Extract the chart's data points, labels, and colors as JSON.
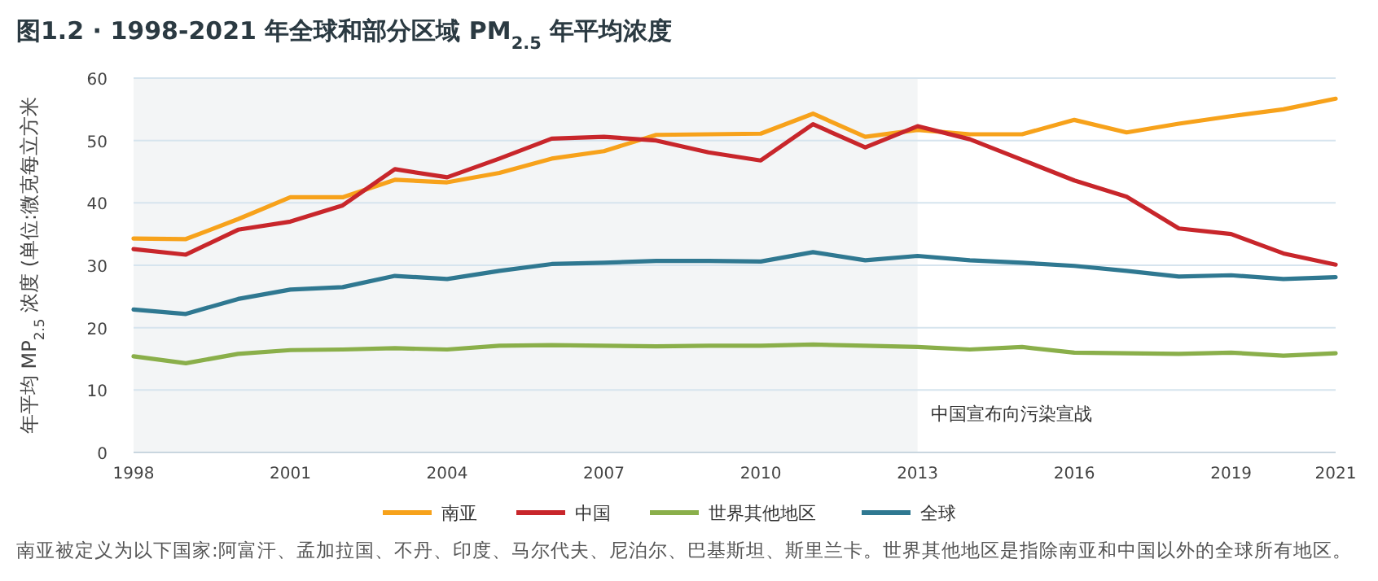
{
  "chart_data": {
    "type": "line",
    "title": "图1.2 · 1998-2021 年全球和部分区域 PM$_{2.5}$ 年平均浓度",
    "ylabel": "年平均 MP$_{2.5}$ 浓度 (单位:微克每立方米",
    "x": [
      1998,
      1999,
      2000,
      2001,
      2002,
      2003,
      2004,
      2005,
      2006,
      2007,
      2008,
      2009,
      2010,
      2011,
      2012,
      2013,
      2014,
      2015,
      2016,
      2017,
      2018,
      2019,
      2020,
      2021
    ],
    "series": [
      {
        "name": "南亚",
        "color": "#f7a21b",
        "values": [
          34.3,
          34.2,
          37.4,
          40.9,
          40.9,
          43.7,
          43.3,
          44.8,
          47.1,
          48.3,
          50.9,
          51.0,
          51.1,
          54.3,
          50.6,
          51.7,
          51.0,
          51.0,
          53.3,
          51.3,
          52.7,
          53.9,
          55.0,
          56.7
        ]
      },
      {
        "name": "中国",
        "color": "#c8262b",
        "values": [
          32.6,
          31.7,
          35.7,
          37.0,
          39.6,
          45.4,
          44.1,
          47.1,
          50.3,
          50.6,
          50.0,
          48.1,
          46.8,
          52.6,
          48.9,
          52.3,
          50.2,
          46.9,
          43.6,
          41.0,
          35.9,
          35.0,
          31.9,
          30.1
        ]
      },
      {
        "name": "世界其他地区",
        "color": "#8aaf4a",
        "values": [
          15.4,
          14.3,
          15.8,
          16.4,
          16.5,
          16.7,
          16.5,
          17.1,
          17.2,
          17.1,
          17.0,
          17.1,
          17.1,
          17.3,
          17.1,
          16.9,
          16.5,
          16.9,
          16.0,
          15.9,
          15.8,
          16.0,
          15.5,
          15.9
        ]
      },
      {
        "name": "全球",
        "color": "#2f7891",
        "values": [
          22.9,
          22.2,
          24.6,
          26.1,
          26.5,
          28.3,
          27.8,
          29.1,
          30.2,
          30.4,
          30.7,
          30.7,
          30.6,
          32.1,
          30.8,
          31.5,
          30.8,
          30.4,
          29.9,
          29.1,
          28.2,
          28.4,
          27.8,
          28.1
        ]
      }
    ],
    "xlim": [
      1998,
      2021
    ],
    "xticks": [
      1998,
      2001,
      2004,
      2007,
      2010,
      2013,
      2016,
      2019,
      2021
    ],
    "ylim": [
      0,
      60
    ],
    "yticks": [
      0,
      10,
      20,
      30,
      40,
      50,
      60
    ],
    "grid": "y",
    "legend": "bottom",
    "marker": "none",
    "line_style": "solid",
    "bands": [
      {
        "axis": "x",
        "from": 1998,
        "to": 2013,
        "label": "中国宣布向污染宣战",
        "color": "#f3f5f6"
      }
    ],
    "annotations": [
      "南亚被定义为以下国家:阿富汗、孟加拉国、不丹、印度、马尔代夫、尼泊尔、巴基斯坦、斯里兰卡。世界其他地区是指除南亚和中国以外的全球所有地区。"
    ]
  }
}
